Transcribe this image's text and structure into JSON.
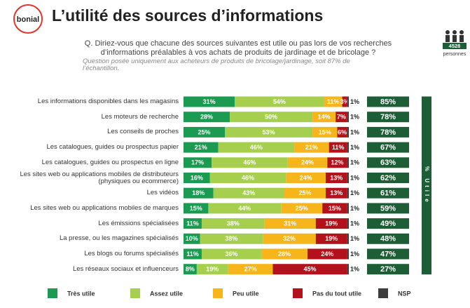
{
  "header": {
    "logo": "bonial",
    "title": "L’utilité des sources d’informations",
    "question": "Q. Diriez-vous que chacune des sources suivantes est utile ou pas lors de vos recherches\nd’informations préalables à vos achats de produits de jardinage et de bricolage ?",
    "note": "Question posée uniquement aux acheteurs de produits de bricolage/jardinage, soit 87% de\nl’échantillon.",
    "sample_size": "4528",
    "sample_unit": "personnes"
  },
  "chart_data": {
    "type": "stacked_bar",
    "orientation": "horizontal",
    "xlim": [
      0,
      100
    ],
    "categories": [
      "Les informations disponibles dans les magasins",
      "Les moteurs de recherche",
      "Les conseils de proches",
      "Les catalogues, guides ou prospectus papier",
      "Les catalogues, guides ou prospectus en ligne",
      "Les sites web ou applications mobiles de distributeurs\n(physiques ou ecommerce)",
      "Les vidéos",
      "Les sites web ou applications mobiles de marques",
      "Les émissions spécialisées",
      "La presse, ou les magazines spécialisés",
      "Les blogs ou forums spécialisés",
      "Les réseaux sociaux et influenceurs"
    ],
    "series": [
      {
        "name": "Très utile",
        "color": "#1b9a52",
        "label_color": "#ffffff",
        "values": [
          31,
          28,
          25,
          21,
          17,
          16,
          18,
          15,
          11,
          10,
          11,
          8
        ],
        "value_labels": [
          "31%",
          "28%",
          "25%",
          "21%",
          "17%",
          "16%",
          "18%",
          "15%",
          "11%",
          "10%",
          "11%",
          "8%"
        ]
      },
      {
        "name": "Assez utile",
        "color": "#a5cf4c",
        "label_color": "#ffffff",
        "values": [
          54,
          50,
          53,
          46,
          46,
          46,
          43,
          44,
          38,
          38,
          36,
          19
        ],
        "value_labels": [
          "54%",
          "50%",
          "53%",
          "46%",
          "46%",
          "46%",
          "43%",
          "44%",
          "38%",
          "38%",
          "36%",
          "19%"
        ]
      },
      {
        "name": "Peu utile",
        "color": "#f6b51b",
        "label_color": "#ffffff",
        "values": [
          11,
          14,
          15,
          21,
          24,
          24,
          25,
          25,
          31,
          32,
          28,
          27
        ],
        "value_labels": [
          "11%",
          "14%",
          "15%",
          "21%",
          "24%",
          "24%",
          "25%",
          "25%",
          "31%",
          "32%",
          "28%",
          "27%"
        ]
      },
      {
        "name": "Pas du tout utile",
        "color": "#b3121c",
        "label_color": "#ffffff",
        "values": [
          3,
          7,
          6,
          11,
          12,
          13,
          13,
          15,
          19,
          19,
          24,
          45
        ],
        "value_labels": [
          "3%",
          "7%",
          "6%",
          "11%",
          "12%",
          "13%",
          "13%",
          "15%",
          "19%",
          "19%",
          "24%",
          "45%"
        ]
      },
      {
        "name": "NSP",
        "color": "#3d3d3d",
        "label_color": "#222222",
        "values": [
          1,
          1,
          1,
          1,
          1,
          1,
          1,
          1,
          1,
          1,
          1,
          1
        ],
        "value_labels": [
          "1%",
          "1%",
          "1%",
          "1%",
          "1%",
          "1%",
          "1%",
          "1%",
          "1%",
          "1%",
          "1%",
          "1%"
        ]
      }
    ],
    "total": {
      "name": "% Utile",
      "color": "#1d5e36",
      "values": [
        85,
        78,
        78,
        67,
        63,
        62,
        61,
        59,
        49,
        48,
        47,
        27
      ],
      "value_labels": [
        "85%",
        "78%",
        "78%",
        "67%",
        "63%",
        "62%",
        "61%",
        "59%",
        "49%",
        "48%",
        "47%",
        "27%"
      ]
    }
  }
}
